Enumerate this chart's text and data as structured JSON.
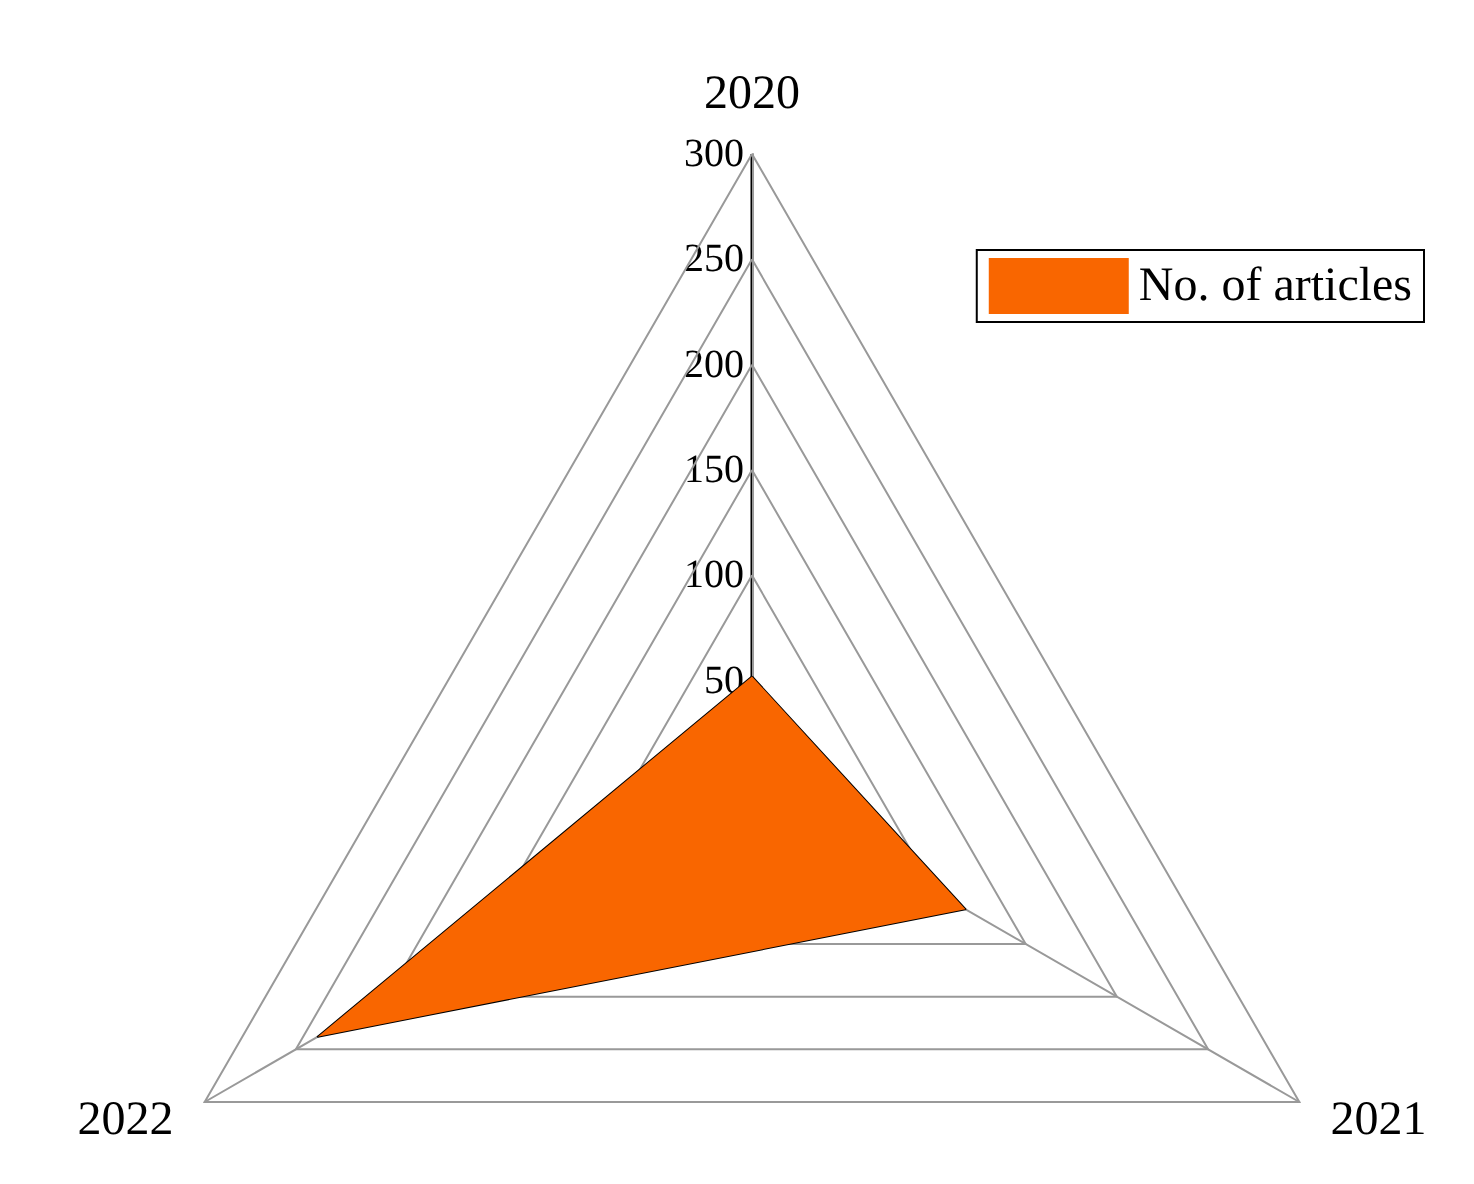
{
  "chart_data": {
    "type": "radar",
    "categories": [
      "2020",
      "2021",
      "2022"
    ],
    "series": [
      {
        "name": "No. of articles",
        "color": "#f96600",
        "values": [
          52,
          117,
          238
        ]
      }
    ],
    "ylim": [
      0,
      300
    ],
    "yticks": [
      50,
      100,
      150,
      200,
      250,
      300
    ],
    "legend": "top right",
    "grid": true
  }
}
